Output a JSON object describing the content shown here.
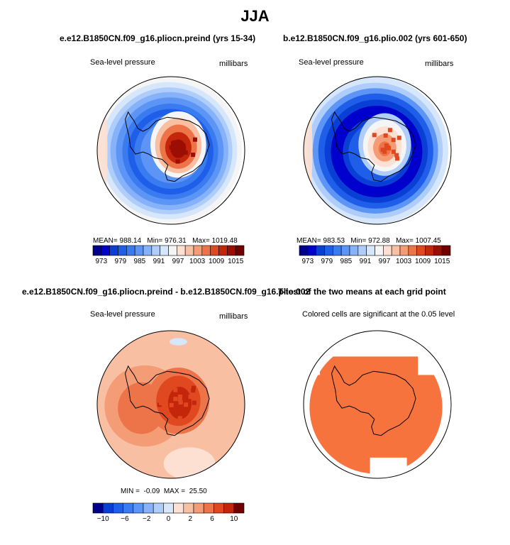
{
  "figure": {
    "title": "JJA"
  },
  "panels": [
    {
      "title": "e.e12.B1850CN.f09_g16.pliocn.preind (yrs 15-34)",
      "left_label": "Sea-level pressure",
      "right_label": "millibars",
      "stats": "MEAN= 988.14   Min= 976.31   Max= 1019.48",
      "palette": "abs",
      "colorbar_ticks": [
        "973",
        "979",
        "985",
        "991",
        "997",
        "1003",
        "1009",
        "1015"
      ],
      "pattern": "a"
    },
    {
      "title": "b.e12.B1850CN.f09_g16.plio.002 (yrs 601-650)",
      "left_label": "Sea-level pressure",
      "right_label": "millibars",
      "stats": "MEAN= 983.53   Min= 972.88   Max= 1007.45",
      "palette": "abs",
      "colorbar_ticks": [
        "973",
        "979",
        "985",
        "991",
        "997",
        "1003",
        "1009",
        "1015"
      ],
      "pattern": "b"
    },
    {
      "title": "e.e12.B1850CN.f09_g16.pliocn.preind - b.e12.B1850CN.f09_g16.plio.002",
      "left_label": "Sea-level pressure",
      "right_label": "millibars",
      "stats": "MIN =  -0.09  MAX =  25.50",
      "palette": "diff",
      "colorbar_ticks": [
        "−10",
        "−6",
        "−2",
        "0",
        "2",
        "6",
        "10"
      ],
      "pattern": "diff"
    },
    {
      "title": "T-test of the two means at each grid point",
      "left_label": "Colored cells are significant at the 0.05 level",
      "pattern": "ttest"
    }
  ],
  "chart_data": [
    {
      "type": "heatmap",
      "projection": "south polar stereographic",
      "title": "e.e12.B1850CN.f09_g16.pliocn.preind (yrs 15-34)",
      "variable": "Sea-level pressure",
      "units": "millibars",
      "mean": 988.14,
      "min": 976.31,
      "max": 1019.48,
      "contour_levels": [
        973,
        976,
        979,
        982,
        985,
        988,
        991,
        994,
        997,
        1000,
        1003,
        1006,
        1009,
        1012,
        1015
      ],
      "colors": [
        "#00008b",
        "#0000cd",
        "#0a3fd6",
        "#1f5ee8",
        "#3b7bf0",
        "#5c95f5",
        "#85b2f8",
        "#afcdfa",
        "#d6e6fb",
        "#f5f5f5",
        "#fde0d2",
        "#f9bfa3",
        "#f49c75",
        "#ec7448",
        "#e0491f",
        "#c4260b",
        "#9c0d03",
        "#700000"
      ]
    },
    {
      "type": "heatmap",
      "projection": "south polar stereographic",
      "title": "b.e12.B1850CN.f09_g16.plio.002 (yrs 601-650)",
      "variable": "Sea-level pressure",
      "units": "millibars",
      "mean": 983.53,
      "min": 972.88,
      "max": 1007.45,
      "contour_levels": [
        973,
        976,
        979,
        982,
        985,
        988,
        991,
        994,
        997,
        1000,
        1003,
        1006,
        1009,
        1012,
        1015
      ]
    },
    {
      "type": "heatmap",
      "projection": "south polar stereographic",
      "title": "e.e12.B1850CN.f09_g16.pliocn.preind - b.e12.B1850CN.f09_g16.plio.002",
      "variable": "Sea-level pressure",
      "units": "millibars",
      "min": -0.09,
      "max": 25.5,
      "contour_levels": [
        -12,
        -10,
        -8,
        -6,
        -4,
        -2,
        0,
        2,
        4,
        6,
        8,
        10,
        12
      ],
      "colors": [
        "#00008b",
        "#0a3fd6",
        "#1f5ee8",
        "#3b7bf0",
        "#5c95f5",
        "#85b2f8",
        "#afcdfa",
        "#d6e6fb",
        "#fde0d2",
        "#f9bfa3",
        "#f49c75",
        "#ec7448",
        "#e0491f",
        "#c4260b",
        "#700000"
      ]
    },
    {
      "type": "heatmap",
      "projection": "south polar stereographic",
      "title": "T-test of the two means at each grid point",
      "note": "Colored cells are significant at the 0.05 level",
      "fill_color": "#f6733e"
    }
  ]
}
